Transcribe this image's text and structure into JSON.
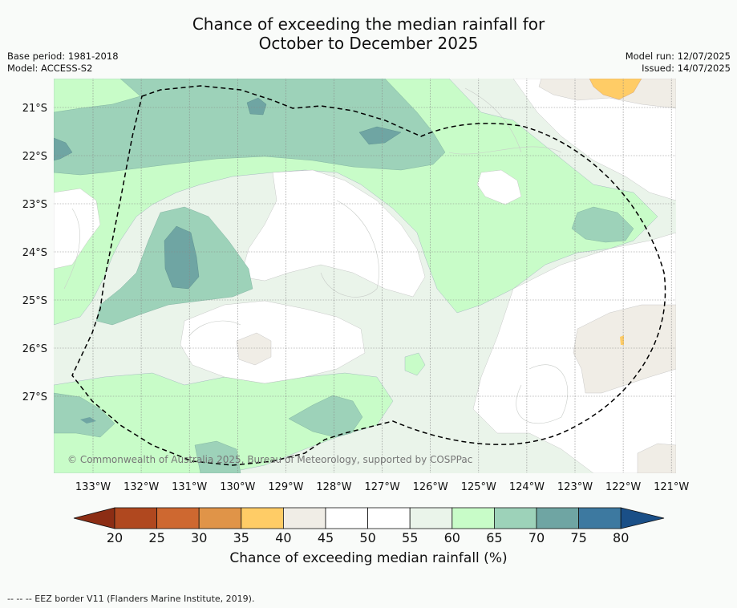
{
  "title_line1": "Chance of exceeding the median rainfall for",
  "title_line2": "October to December 2025",
  "base_period": "Base period: 1981-2018",
  "model": "Model: ACCESS-S2",
  "model_run": "Model run: 12/07/2025",
  "issued": "Issued: 14/07/2025",
  "copyright": "© Commonwealth of Australia 2025, Bureau of Meteorology, supported by COSPPac",
  "lat_labels": [
    "21°S",
    "22°S",
    "23°S",
    "24°S",
    "25°S",
    "26°S",
    "27°S"
  ],
  "lon_labels": [
    "133°W",
    "132°W",
    "131°W",
    "130°W",
    "129°W",
    "128°W",
    "127°W",
    "126°W",
    "125°W",
    "124°W",
    "123°W",
    "122°W",
    "121°W"
  ],
  "colorbar": {
    "ticks": [
      "20",
      "25",
      "30",
      "35",
      "40",
      "45",
      "50",
      "55",
      "60",
      "65",
      "70",
      "75",
      "80"
    ],
    "label": "Chance of exceeding median rainfall (%)",
    "colors": [
      "#8c2d14",
      "#b0481f",
      "#ce6830",
      "#e09448",
      "#ffcc66",
      "#f0ede6",
      "#ffffff",
      "#ffffff",
      "#eaf4ea",
      "#c8fcc8",
      "#9dd2b9",
      "#6fa5a3",
      "#3d79a0",
      "#1a4f87"
    ]
  },
  "footer": "--  --  -- EEZ border V11 (Flanders Marine Institute, 2019)."
}
